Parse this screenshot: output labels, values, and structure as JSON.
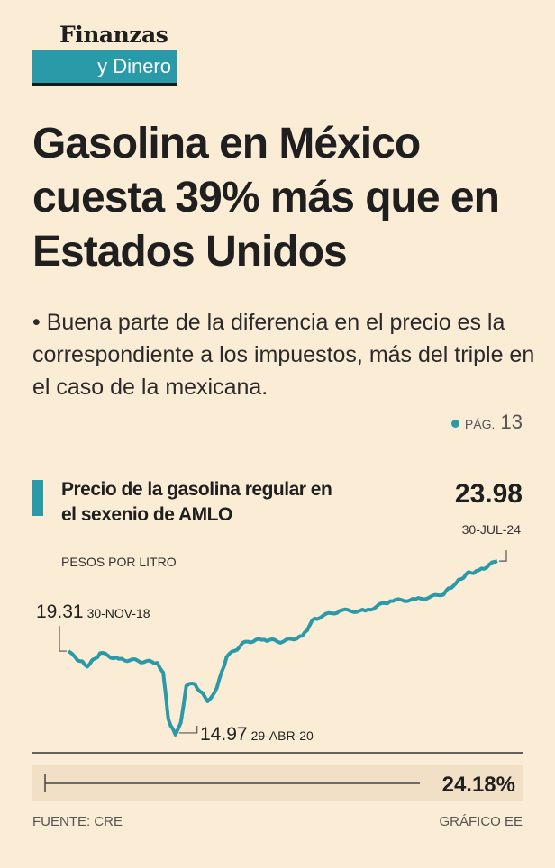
{
  "section": {
    "line1": "Finanzas",
    "line2": "y Dinero"
  },
  "headline": "Gasolina en México cuesta 39% más que en Estados Unidos",
  "subhead": "• Buena parte de la diferencia en el precio es la correspondiente a los impuestos, más del triple en el caso de la mexicana.",
  "page_ref": {
    "prefix": "PÁG.",
    "number": "13"
  },
  "chart_data": {
    "type": "line",
    "title": "Precio de la gasolina regular en el sexenio de AMLO",
    "ylabel": "PESOS POR LITRO",
    "x_range": [
      "2018-11-30",
      "2024-07-30"
    ],
    "ylim": [
      14.5,
      24.5
    ],
    "series": [
      {
        "values": [
          {
            "x": "2018-11-30",
            "y": 19.31
          },
          {
            "x": "2019-01-01",
            "y": 19.0
          },
          {
            "x": "2019-03-01",
            "y": 18.5
          },
          {
            "x": "2019-05-01",
            "y": 19.2
          },
          {
            "x": "2019-08-01",
            "y": 18.9
          },
          {
            "x": "2019-11-01",
            "y": 18.8
          },
          {
            "x": "2020-02-01",
            "y": 18.7
          },
          {
            "x": "2020-03-01",
            "y": 18.2
          },
          {
            "x": "2020-03-25",
            "y": 15.8
          },
          {
            "x": "2020-04-29",
            "y": 14.97
          },
          {
            "x": "2020-05-25",
            "y": 15.6
          },
          {
            "x": "2020-06-20",
            "y": 17.5
          },
          {
            "x": "2020-08-01",
            "y": 17.6
          },
          {
            "x": "2020-10-01",
            "y": 16.7
          },
          {
            "x": "2020-11-15",
            "y": 17.4
          },
          {
            "x": "2021-01-01",
            "y": 19.0
          },
          {
            "x": "2021-04-01",
            "y": 19.8
          },
          {
            "x": "2021-07-01",
            "y": 19.9
          },
          {
            "x": "2021-10-01",
            "y": 19.8
          },
          {
            "x": "2022-01-01",
            "y": 20.1
          },
          {
            "x": "2022-03-01",
            "y": 21.0
          },
          {
            "x": "2022-07-01",
            "y": 21.4
          },
          {
            "x": "2022-11-01",
            "y": 21.4
          },
          {
            "x": "2023-03-01",
            "y": 21.9
          },
          {
            "x": "2023-07-01",
            "y": 22.0
          },
          {
            "x": "2023-11-01",
            "y": 22.2
          },
          {
            "x": "2024-01-01",
            "y": 22.7
          },
          {
            "x": "2024-03-01",
            "y": 23.3
          },
          {
            "x": "2024-05-01",
            "y": 23.5
          },
          {
            "x": "2024-07-30",
            "y": 23.98
          }
        ]
      }
    ],
    "annotations": {
      "first": {
        "value": "19.31",
        "date": "30-NOV-18"
      },
      "min": {
        "value": "14.97",
        "date": "29-ABR-20"
      },
      "last": {
        "value": "23.98",
        "date": "30-JUL-24"
      }
    },
    "change": "24.18%",
    "line_color": "#2a9aa8"
  },
  "footer": {
    "source": "FUENTE: CRE",
    "credit": "GRÁFICO EE"
  }
}
